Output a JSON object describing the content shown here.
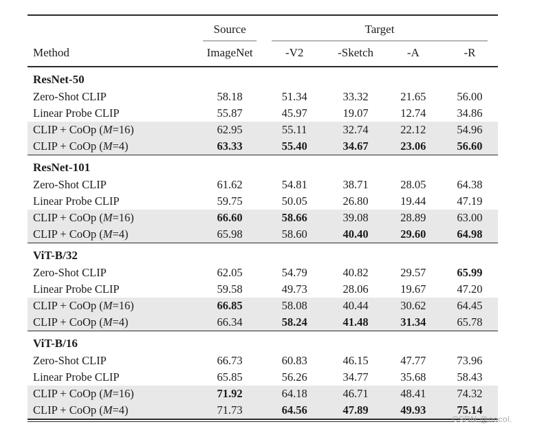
{
  "table": {
    "group_headers": {
      "source": "Source",
      "target": "Target"
    },
    "headers": {
      "method": "Method",
      "cols": [
        "ImageNet",
        "-V2",
        "-Sketch",
        "-A",
        "-R"
      ]
    },
    "sections": [
      {
        "name": "ResNet-50",
        "rows": [
          {
            "pre": "Zero-Shot CLIP",
            "var": "",
            "post": "",
            "hl": false,
            "bold": [],
            "values": [
              "58.18",
              "51.34",
              "33.32",
              "21.65",
              "56.00"
            ]
          },
          {
            "pre": "Linear Probe CLIP",
            "var": "",
            "post": "",
            "hl": false,
            "bold": [],
            "values": [
              "55.87",
              "45.97",
              "19.07",
              "12.74",
              "34.86"
            ]
          },
          {
            "pre": "CLIP + CoOp (",
            "var": "M",
            "post": "=16)",
            "hl": true,
            "bold": [],
            "values": [
              "62.95",
              "55.11",
              "32.74",
              "22.12",
              "54.96"
            ]
          },
          {
            "pre": "CLIP + CoOp (",
            "var": "M",
            "post": "=4)",
            "hl": true,
            "bold": [
              0,
              1,
              2,
              3,
              4
            ],
            "values": [
              "63.33",
              "55.40",
              "34.67",
              "23.06",
              "56.60"
            ]
          }
        ]
      },
      {
        "name": "ResNet-101",
        "rows": [
          {
            "pre": "Zero-Shot CLIP",
            "var": "",
            "post": "",
            "hl": false,
            "bold": [],
            "values": [
              "61.62",
              "54.81",
              "38.71",
              "28.05",
              "64.38"
            ]
          },
          {
            "pre": "Linear Probe CLIP",
            "var": "",
            "post": "",
            "hl": false,
            "bold": [],
            "values": [
              "59.75",
              "50.05",
              "26.80",
              "19.44",
              "47.19"
            ]
          },
          {
            "pre": "CLIP + CoOp (",
            "var": "M",
            "post": "=16)",
            "hl": true,
            "bold": [
              0,
              1
            ],
            "values": [
              "66.60",
              "58.66",
              "39.08",
              "28.89",
              "63.00"
            ]
          },
          {
            "pre": "CLIP + CoOp (",
            "var": "M",
            "post": "=4)",
            "hl": true,
            "bold": [
              2,
              3,
              4
            ],
            "values": [
              "65.98",
              "58.60",
              "40.40",
              "29.60",
              "64.98"
            ]
          }
        ]
      },
      {
        "name": "ViT-B/32",
        "rows": [
          {
            "pre": "Zero-Shot CLIP",
            "var": "",
            "post": "",
            "hl": false,
            "bold": [
              4
            ],
            "values": [
              "62.05",
              "54.79",
              "40.82",
              "29.57",
              "65.99"
            ]
          },
          {
            "pre": "Linear Probe CLIP",
            "var": "",
            "post": "",
            "hl": false,
            "bold": [],
            "values": [
              "59.58",
              "49.73",
              "28.06",
              "19.67",
              "47.20"
            ]
          },
          {
            "pre": "CLIP + CoOp (",
            "var": "M",
            "post": "=16)",
            "hl": true,
            "bold": [
              0
            ],
            "values": [
              "66.85",
              "58.08",
              "40.44",
              "30.62",
              "64.45"
            ]
          },
          {
            "pre": "CLIP + CoOp (",
            "var": "M",
            "post": "=4)",
            "hl": true,
            "bold": [
              1,
              2,
              3
            ],
            "values": [
              "66.34",
              "58.24",
              "41.48",
              "31.34",
              "65.78"
            ]
          }
        ]
      },
      {
        "name": "ViT-B/16",
        "rows": [
          {
            "pre": "Zero-Shot CLIP",
            "var": "",
            "post": "",
            "hl": false,
            "bold": [],
            "values": [
              "66.73",
              "60.83",
              "46.15",
              "47.77",
              "73.96"
            ]
          },
          {
            "pre": "Linear Probe CLIP",
            "var": "",
            "post": "",
            "hl": false,
            "bold": [],
            "values": [
              "65.85",
              "56.26",
              "34.77",
              "35.68",
              "58.43"
            ]
          },
          {
            "pre": "CLIP + CoOp (",
            "var": "M",
            "post": "=16)",
            "hl": true,
            "bold": [
              0
            ],
            "values": [
              "71.92",
              "64.18",
              "46.71",
              "48.41",
              "74.32"
            ]
          },
          {
            "pre": "CLIP + CoOp (",
            "var": "M",
            "post": "=4)",
            "hl": true,
            "bold": [
              1,
              2,
              3,
              4
            ],
            "values": [
              "71.73",
              "64.56",
              "47.89",
              "49.93",
              "75.14"
            ]
          }
        ]
      }
    ]
  },
  "watermark": "CSDN @nocol.",
  "colors": {
    "row_highlight": "#e8e8e8",
    "text": "#1c1c1c",
    "rule": "#2a2a2a",
    "watermark": "#a9a9a9"
  }
}
